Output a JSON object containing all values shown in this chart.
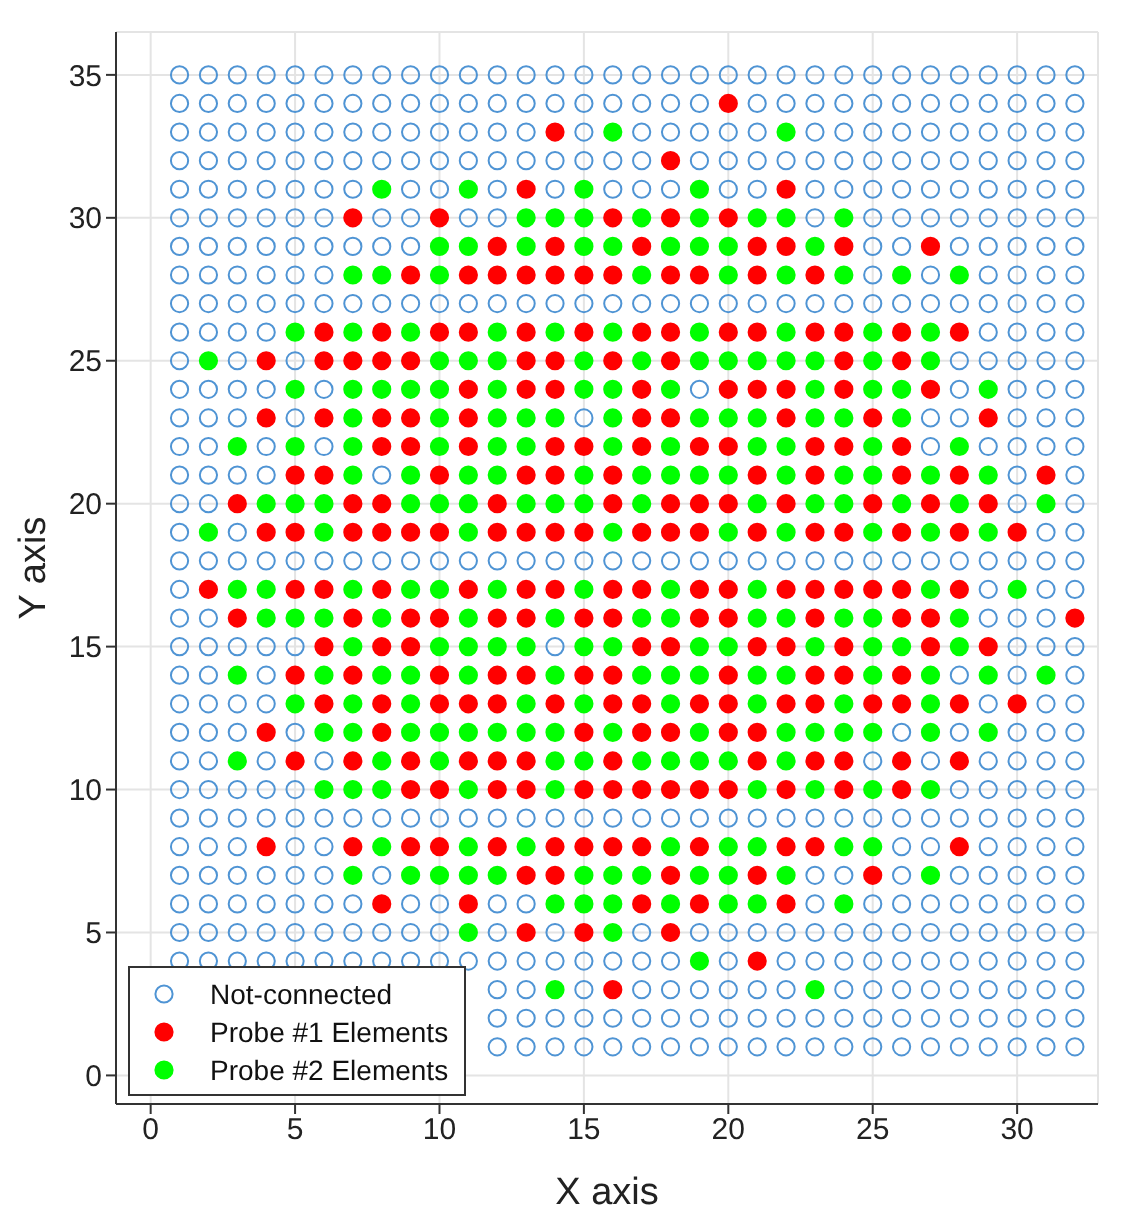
{
  "chart_data": {
    "type": "scatter",
    "xlabel": "X axis",
    "ylabel": "Y axis",
    "xlim": [
      -1.2,
      32.8
    ],
    "ylim": [
      -1,
      36.5
    ],
    "xticks": [
      0,
      5,
      10,
      15,
      20,
      25,
      30
    ],
    "yticks": [
      0,
      5,
      10,
      15,
      20,
      25,
      30,
      35
    ],
    "grid": true,
    "legend": "bottom left",
    "marker": "circle",
    "series": [
      {
        "name": "Not-connected",
        "color": "#4f94d4",
        "x": [
          1,
          2,
          3,
          4,
          5,
          6,
          7,
          8,
          9,
          10,
          11,
          12,
          13,
          14,
          15,
          16,
          17,
          18,
          19,
          20,
          21,
          22,
          23,
          24,
          25,
          26,
          27,
          28,
          29,
          30,
          31,
          32,
          1,
          2,
          3,
          4,
          5,
          6,
          7,
          8,
          9,
          10,
          11,
          12,
          13,
          14,
          15,
          16,
          17,
          18,
          19,
          21,
          22,
          23,
          24,
          25,
          26,
          27,
          28,
          29,
          30,
          31,
          32,
          1,
          2,
          3,
          4,
          5,
          6,
          7,
          8,
          9,
          10,
          11,
          12,
          13,
          15,
          17,
          18,
          19,
          20,
          21,
          23,
          24,
          25,
          26,
          27,
          28,
          29,
          30,
          31,
          32,
          1,
          2,
          3,
          4,
          5,
          6,
          7,
          8,
          9,
          10,
          11,
          12,
          13,
          14,
          15,
          16,
          17,
          19,
          20,
          21,
          22,
          23,
          24,
          25,
          26,
          27,
          28,
          29,
          30,
          31,
          32,
          1,
          2,
          3,
          4,
          5,
          6,
          7,
          9,
          10,
          12,
          14,
          16,
          17,
          18,
          20,
          21,
          23,
          24,
          25,
          26,
          27,
          28,
          29,
          30,
          31,
          32,
          1,
          2,
          3,
          4,
          5,
          6,
          8,
          9,
          11,
          12,
          23,
          25,
          26,
          27,
          28,
          29,
          30,
          31,
          32,
          1,
          2,
          3,
          4,
          5,
          6,
          7,
          8,
          9,
          25,
          26,
          28,
          29,
          30,
          31,
          32,
          1,
          2,
          3,
          4,
          5,
          6,
          25,
          27,
          29,
          30,
          31,
          32,
          1,
          2,
          3,
          4,
          5,
          6,
          7,
          8,
          9,
          10,
          11,
          12,
          13,
          14,
          15,
          16,
          17,
          18,
          19,
          20,
          21,
          22,
          23,
          24,
          25,
          26,
          27,
          28,
          29,
          30,
          31,
          32,
          1,
          2,
          3,
          4,
          29,
          30,
          31,
          32,
          1,
          3,
          5,
          28,
          29,
          30,
          31,
          32,
          1,
          2,
          3,
          4,
          6,
          19,
          28,
          30,
          31,
          32,
          1,
          2,
          3,
          5,
          15,
          27,
          28,
          30,
          31,
          32,
          1,
          2,
          4,
          6,
          27,
          29,
          30,
          31,
          32,
          1,
          2,
          3,
          4,
          8,
          30,
          32,
          1,
          2,
          30,
          32,
          1,
          3,
          31,
          32,
          1,
          2,
          3,
          4,
          5,
          6,
          7,
          8,
          9,
          10,
          11,
          12,
          13,
          14,
          15,
          16,
          17,
          18,
          19,
          20,
          21,
          22,
          23,
          24,
          25,
          26,
          27,
          28,
          29,
          30,
          31,
          32,
          1,
          29,
          31,
          32,
          1,
          2,
          29,
          30,
          31,
          1,
          2,
          3,
          4,
          5,
          14,
          30,
          31,
          32,
          1,
          2,
          4,
          28,
          30,
          32,
          1,
          2,
          3,
          4,
          29,
          31,
          32,
          1,
          2,
          3,
          5,
          26,
          28,
          30,
          31,
          32,
          1,
          2,
          4,
          6,
          25,
          27,
          29,
          30,
          31,
          32,
          1,
          2,
          3,
          4,
          5,
          28,
          29,
          30,
          31,
          32,
          1,
          2,
          3,
          4,
          5,
          6,
          7,
          8,
          9,
          10,
          11,
          12,
          13,
          14,
          15,
          16,
          17,
          18,
          19,
          20,
          21,
          22,
          23,
          24,
          25,
          26,
          27,
          28,
          29,
          30,
          31,
          32,
          1,
          2,
          3,
          5,
          6,
          26,
          27,
          29,
          30,
          31,
          32,
          1,
          2,
          3,
          4,
          5,
          6,
          8,
          23,
          24,
          26,
          28,
          29,
          30,
          31,
          32,
          1,
          2,
          3,
          4,
          5,
          6,
          7,
          9,
          10,
          12,
          13,
          23,
          25,
          26,
          27,
          28,
          29,
          30,
          31,
          32,
          1,
          2,
          3,
          4,
          5,
          6,
          7,
          8,
          9,
          10,
          12,
          14,
          17,
          19,
          20,
          21,
          22,
          23,
          24,
          25,
          26,
          27,
          28,
          29,
          30,
          31,
          32,
          1,
          2,
          3,
          4,
          5,
          6,
          7,
          8,
          9,
          10,
          11,
          12,
          13,
          14,
          15,
          16,
          17,
          18,
          20,
          22,
          23,
          24,
          25,
          26,
          27,
          28,
          29,
          30,
          31,
          32,
          12,
          13,
          15,
          17,
          18,
          19,
          20,
          21,
          22,
          24,
          25,
          26,
          27,
          28,
          29,
          30,
          31,
          32,
          12,
          13,
          14,
          15,
          16,
          17,
          18,
          19,
          20,
          21,
          22,
          23,
          24,
          25,
          26,
          27,
          28,
          29,
          30,
          31,
          32,
          12,
          13,
          14,
          15,
          16,
          17,
          18,
          19,
          20,
          21,
          22,
          23,
          24,
          25,
          26,
          27,
          28,
          29,
          30,
          31,
          32
        ],
        "values": [
          35,
          35,
          35,
          35,
          35,
          35,
          35,
          35,
          35,
          35,
          35,
          35,
          35,
          35,
          35,
          35,
          35,
          35,
          35,
          35,
          35,
          35,
          35,
          35,
          35,
          35,
          35,
          35,
          35,
          35,
          35,
          35,
          34,
          34,
          34,
          34,
          34,
          34,
          34,
          34,
          34,
          34,
          34,
          34,
          34,
          34,
          34,
          34,
          34,
          34,
          34,
          34,
          34,
          34,
          34,
          34,
          34,
          34,
          34,
          34,
          34,
          34,
          34,
          33,
          33,
          33,
          33,
          33,
          33,
          33,
          33,
          33,
          33,
          33,
          33,
          33,
          33,
          33,
          33,
          33,
          33,
          33,
          33,
          33,
          33,
          33,
          33,
          33,
          33,
          33,
          33,
          33,
          32,
          32,
          32,
          32,
          32,
          32,
          32,
          32,
          32,
          32,
          32,
          32,
          32,
          32,
          32,
          32,
          32,
          32,
          32,
          32,
          32,
          32,
          32,
          32,
          32,
          32,
          32,
          32,
          32,
          32,
          32,
          31,
          31,
          31,
          31,
          31,
          31,
          31,
          31,
          31,
          31,
          31,
          31,
          31,
          31,
          31,
          31,
          31,
          31,
          31,
          31,
          31,
          31,
          31,
          31,
          31,
          31,
          30,
          30,
          30,
          30,
          30,
          30,
          30,
          30,
          30,
          30,
          30,
          30,
          30,
          30,
          30,
          30,
          30,
          30,
          30,
          29,
          29,
          29,
          29,
          29,
          29,
          29,
          29,
          29,
          29,
          29,
          29,
          29,
          29,
          29,
          29,
          28,
          28,
          28,
          28,
          28,
          28,
          28,
          28,
          28,
          28,
          28,
          28,
          27,
          27,
          27,
          27,
          27,
          27,
          27,
          27,
          27,
          27,
          27,
          27,
          27,
          27,
          27,
          27,
          27,
          27,
          27,
          27,
          27,
          27,
          27,
          27,
          27,
          27,
          27,
          27,
          27,
          27,
          27,
          27,
          26,
          26,
          26,
          26,
          26,
          26,
          26,
          26,
          25,
          25,
          25,
          25,
          25,
          25,
          25,
          25,
          24,
          24,
          24,
          24,
          24,
          24,
          24,
          24,
          24,
          24,
          23,
          23,
          23,
          23,
          23,
          23,
          23,
          23,
          23,
          23,
          22,
          22,
          22,
          22,
          22,
          22,
          22,
          22,
          22,
          21,
          21,
          21,
          21,
          21,
          21,
          21,
          20,
          20,
          20,
          20,
          19,
          19,
          19,
          19,
          18,
          18,
          18,
          18,
          18,
          18,
          18,
          18,
          18,
          18,
          18,
          18,
          18,
          18,
          18,
          18,
          18,
          18,
          18,
          18,
          18,
          18,
          18,
          18,
          18,
          18,
          18,
          18,
          18,
          18,
          18,
          18,
          17,
          17,
          17,
          17,
          16,
          16,
          16,
          16,
          16,
          15,
          15,
          15,
          15,
          15,
          15,
          15,
          15,
          15,
          14,
          14,
          14,
          14,
          14,
          14,
          13,
          13,
          13,
          13,
          13,
          13,
          13,
          12,
          12,
          12,
          12,
          12,
          12,
          12,
          12,
          12,
          11,
          11,
          11,
          11,
          11,
          11,
          11,
          11,
          11,
          11,
          10,
          10,
          10,
          10,
          10,
          10,
          10,
          10,
          10,
          10,
          9,
          9,
          9,
          9,
          9,
          9,
          9,
          9,
          9,
          9,
          9,
          9,
          9,
          9,
          9,
          9,
          9,
          9,
          9,
          9,
          9,
          9,
          9,
          9,
          9,
          9,
          9,
          9,
          9,
          9,
          9,
          9,
          8,
          8,
          8,
          8,
          8,
          8,
          8,
          8,
          8,
          8,
          8,
          7,
          7,
          7,
          7,
          7,
          7,
          7,
          7,
          7,
          7,
          7,
          7,
          7,
          7,
          7,
          6,
          6,
          6,
          6,
          6,
          6,
          6,
          6,
          6,
          6,
          6,
          6,
          6,
          6,
          6,
          6,
          6,
          6,
          6,
          6,
          5,
          5,
          5,
          5,
          5,
          5,
          5,
          5,
          5,
          5,
          5,
          5,
          5,
          5,
          5,
          5,
          5,
          5,
          5,
          5,
          5,
          5,
          5,
          5,
          5,
          5,
          5,
          4,
          4,
          4,
          4,
          4,
          4,
          4,
          4,
          4,
          4,
          4,
          4,
          4,
          4,
          4,
          4,
          4,
          4,
          4,
          4,
          4,
          4,
          4,
          4,
          4,
          4,
          4,
          4,
          4,
          4,
          3,
          3,
          3,
          3,
          3,
          3,
          3,
          3,
          3,
          3,
          3,
          3,
          3,
          3,
          3,
          3,
          3,
          3,
          2,
          2,
          2,
          2,
          2,
          2,
          2,
          2,
          2,
          2,
          2,
          2,
          2,
          2,
          2,
          2,
          2,
          2,
          2,
          2,
          2,
          1,
          1,
          1,
          1,
          1,
          1,
          1,
          1,
          1,
          1,
          1,
          1,
          1,
          1,
          1,
          1,
          1,
          1,
          1,
          1,
          1
        ]
      },
      {
        "name": "Probe #1 Elements",
        "color": "#ff0000",
        "x": [
          20,
          14,
          18,
          13,
          22,
          7,
          10,
          16,
          18,
          20,
          12,
          14,
          17,
          21,
          22,
          24,
          27,
          9,
          11,
          12,
          13,
          14,
          15,
          16,
          18,
          19,
          21,
          23,
          6,
          8,
          10,
          11,
          13,
          15,
          17,
          18,
          20,
          21,
          23,
          24,
          26,
          28,
          4,
          6,
          7,
          8,
          9,
          13,
          14,
          16,
          18,
          24,
          26,
          11,
          13,
          14,
          17,
          20,
          21,
          22,
          24,
          27,
          4,
          6,
          8,
          9,
          11,
          17,
          18,
          22,
          25,
          29,
          8,
          9,
          11,
          14,
          15,
          17,
          19,
          20,
          23,
          24,
          26,
          5,
          6,
          10,
          13,
          14,
          16,
          21,
          23,
          26,
          28,
          31,
          3,
          7,
          8,
          12,
          16,
          18,
          19,
          20,
          22,
          25,
          27,
          29,
          4,
          5,
          7,
          8,
          9,
          10,
          12,
          13,
          14,
          15,
          17,
          18,
          19,
          21,
          23,
          24,
          26,
          28,
          30,
          2,
          5,
          6,
          8,
          11,
          13,
          14,
          16,
          17,
          19,
          20,
          22,
          23,
          24,
          25,
          26,
          28,
          3,
          7,
          9,
          10,
          12,
          13,
          15,
          16,
          19,
          20,
          23,
          26,
          27,
          32,
          6,
          8,
          9,
          17,
          18,
          21,
          22,
          24,
          27,
          29,
          5,
          7,
          10,
          12,
          13,
          15,
          16,
          20,
          23,
          24,
          26,
          6,
          8,
          10,
          11,
          12,
          14,
          16,
          17,
          19,
          20,
          22,
          23,
          25,
          26,
          28,
          30,
          4,
          8,
          15,
          17,
          18,
          20,
          21,
          5,
          7,
          9,
          11,
          12,
          13,
          16,
          21,
          23,
          24,
          26,
          28,
          9,
          10,
          12,
          13,
          15,
          16,
          17,
          18,
          19,
          20,
          22,
          24,
          26,
          4,
          7,
          9,
          10,
          12,
          14,
          15,
          16,
          17,
          19,
          22,
          23,
          28,
          13,
          14,
          18,
          21,
          25,
          8,
          11,
          17,
          19,
          22,
          13,
          15,
          18,
          21,
          16
        ],
        "values": [
          34,
          33,
          32,
          31,
          31,
          30,
          30,
          30,
          30,
          30,
          29,
          29,
          29,
          29,
          29,
          29,
          29,
          28,
          28,
          28,
          28,
          28,
          28,
          28,
          28,
          28,
          28,
          28,
          26,
          26,
          26,
          26,
          26,
          26,
          26,
          26,
          26,
          26,
          26,
          26,
          26,
          26,
          25,
          25,
          25,
          25,
          25,
          25,
          25,
          25,
          25,
          25,
          25,
          24,
          24,
          24,
          24,
          24,
          24,
          24,
          24,
          24,
          23,
          23,
          23,
          23,
          23,
          23,
          23,
          23,
          23,
          23,
          22,
          22,
          22,
          22,
          22,
          22,
          22,
          22,
          22,
          22,
          22,
          21,
          21,
          21,
          21,
          21,
          21,
          21,
          21,
          21,
          21,
          21,
          20,
          20,
          20,
          20,
          20,
          20,
          20,
          20,
          20,
          20,
          20,
          20,
          19,
          19,
          19,
          19,
          19,
          19,
          19,
          19,
          19,
          19,
          19,
          19,
          19,
          19,
          19,
          19,
          19,
          19,
          19,
          17,
          17,
          17,
          17,
          17,
          17,
          17,
          17,
          17,
          17,
          17,
          17,
          17,
          17,
          17,
          17,
          17,
          16,
          16,
          16,
          16,
          16,
          16,
          16,
          16,
          16,
          16,
          16,
          16,
          16,
          16,
          15,
          15,
          15,
          15,
          15,
          15,
          15,
          15,
          15,
          15,
          14,
          14,
          14,
          14,
          14,
          14,
          14,
          14,
          14,
          14,
          14,
          13,
          13,
          13,
          13,
          13,
          13,
          13,
          13,
          13,
          13,
          13,
          13,
          13,
          13,
          13,
          13,
          12,
          12,
          12,
          12,
          12,
          12,
          12,
          11,
          11,
          11,
          11,
          11,
          11,
          11,
          11,
          11,
          11,
          11,
          11,
          10,
          10,
          10,
          10,
          10,
          10,
          10,
          10,
          10,
          10,
          10,
          10,
          10,
          8,
          8,
          8,
          8,
          8,
          8,
          8,
          8,
          8,
          8,
          8,
          8,
          8,
          7,
          7,
          7,
          7,
          7,
          6,
          6,
          6,
          6,
          6,
          5,
          5,
          5,
          4,
          3
        ]
      },
      {
        "name": "Probe #2 Elements",
        "color": "#00ff00",
        "x": [
          16,
          22,
          8,
          11,
          15,
          19,
          13,
          14,
          15,
          17,
          19,
          21,
          22,
          24,
          10,
          11,
          13,
          15,
          16,
          18,
          19,
          20,
          23,
          7,
          8,
          10,
          17,
          20,
          22,
          24,
          26,
          28,
          5,
          7,
          9,
          12,
          14,
          16,
          19,
          22,
          25,
          27,
          2,
          10,
          11,
          12,
          15,
          17,
          19,
          20,
          21,
          22,
          23,
          25,
          27,
          5,
          7,
          8,
          9,
          10,
          12,
          15,
          16,
          18,
          23,
          25,
          26,
          29,
          7,
          10,
          12,
          13,
          14,
          16,
          19,
          20,
          21,
          23,
          24,
          26,
          3,
          5,
          7,
          10,
          12,
          13,
          16,
          18,
          21,
          22,
          25,
          28,
          7,
          9,
          11,
          12,
          15,
          17,
          18,
          19,
          20,
          22,
          24,
          25,
          27,
          29,
          4,
          5,
          6,
          9,
          10,
          11,
          13,
          14,
          15,
          17,
          21,
          23,
          24,
          26,
          28,
          31,
          2,
          6,
          11,
          16,
          20,
          22,
          25,
          27,
          29,
          3,
          4,
          7,
          9,
          10,
          12,
          15,
          18,
          21,
          27,
          30,
          4,
          5,
          6,
          8,
          11,
          14,
          17,
          18,
          21,
          22,
          24,
          25,
          28,
          7,
          10,
          11,
          12,
          13,
          15,
          16,
          19,
          20,
          23,
          25,
          26,
          28,
          3,
          6,
          8,
          9,
          11,
          14,
          17,
          18,
          19,
          21,
          22,
          25,
          27,
          29,
          31,
          5,
          7,
          9,
          13,
          15,
          18,
          21,
          24,
          27,
          6,
          7,
          9,
          10,
          11,
          12,
          13,
          14,
          16,
          19,
          22,
          23,
          24,
          25,
          27,
          29,
          3,
          8,
          10,
          14,
          15,
          17,
          18,
          19,
          20,
          22,
          6,
          7,
          8,
          11,
          14,
          21,
          23,
          25,
          27,
          8,
          11,
          13,
          18,
          20,
          21,
          24,
          25,
          7,
          9,
          10,
          11,
          12,
          15,
          16,
          17,
          19,
          20,
          22,
          27,
          14,
          15,
          16,
          18,
          20,
          21,
          24,
          11,
          16,
          19,
          14,
          23
        ],
        "values": [
          33,
          33,
          31,
          31,
          31,
          31,
          30,
          30,
          30,
          30,
          30,
          30,
          30,
          30,
          29,
          29,
          29,
          29,
          29,
          29,
          29,
          29,
          29,
          28,
          28,
          28,
          28,
          28,
          28,
          28,
          28,
          28,
          26,
          26,
          26,
          26,
          26,
          26,
          26,
          26,
          26,
          26,
          25,
          25,
          25,
          25,
          25,
          25,
          25,
          25,
          25,
          25,
          25,
          25,
          25,
          24,
          24,
          24,
          24,
          24,
          24,
          24,
          24,
          24,
          24,
          24,
          24,
          24,
          23,
          23,
          23,
          23,
          23,
          23,
          23,
          23,
          23,
          23,
          23,
          23,
          22,
          22,
          22,
          22,
          22,
          22,
          22,
          22,
          22,
          22,
          22,
          22,
          21,
          21,
          21,
          21,
          21,
          21,
          21,
          21,
          21,
          21,
          21,
          21,
          21,
          21,
          20,
          20,
          20,
          20,
          20,
          20,
          20,
          20,
          20,
          20,
          20,
          20,
          20,
          20,
          20,
          20,
          19,
          19,
          19,
          19,
          19,
          19,
          19,
          19,
          19,
          17,
          17,
          17,
          17,
          17,
          17,
          17,
          17,
          17,
          17,
          17,
          16,
          16,
          16,
          16,
          16,
          16,
          16,
          16,
          16,
          16,
          16,
          16,
          16,
          15,
          15,
          15,
          15,
          15,
          15,
          15,
          15,
          15,
          15,
          15,
          15,
          15,
          14,
          14,
          14,
          14,
          14,
          14,
          14,
          14,
          14,
          14,
          14,
          14,
          14,
          14,
          14,
          13,
          13,
          13,
          13,
          13,
          13,
          13,
          13,
          13,
          12,
          12,
          12,
          12,
          12,
          12,
          12,
          12,
          12,
          12,
          12,
          12,
          12,
          12,
          12,
          12,
          11,
          11,
          11,
          11,
          11,
          11,
          11,
          11,
          11,
          11,
          10,
          10,
          10,
          10,
          10,
          10,
          10,
          10,
          10,
          8,
          8,
          8,
          8,
          8,
          8,
          8,
          8,
          7,
          7,
          7,
          7,
          7,
          7,
          7,
          7,
          7,
          7,
          7,
          7,
          6,
          6,
          6,
          6,
          6,
          6,
          6,
          5,
          5,
          4,
          3,
          3
        ]
      }
    ]
  }
}
